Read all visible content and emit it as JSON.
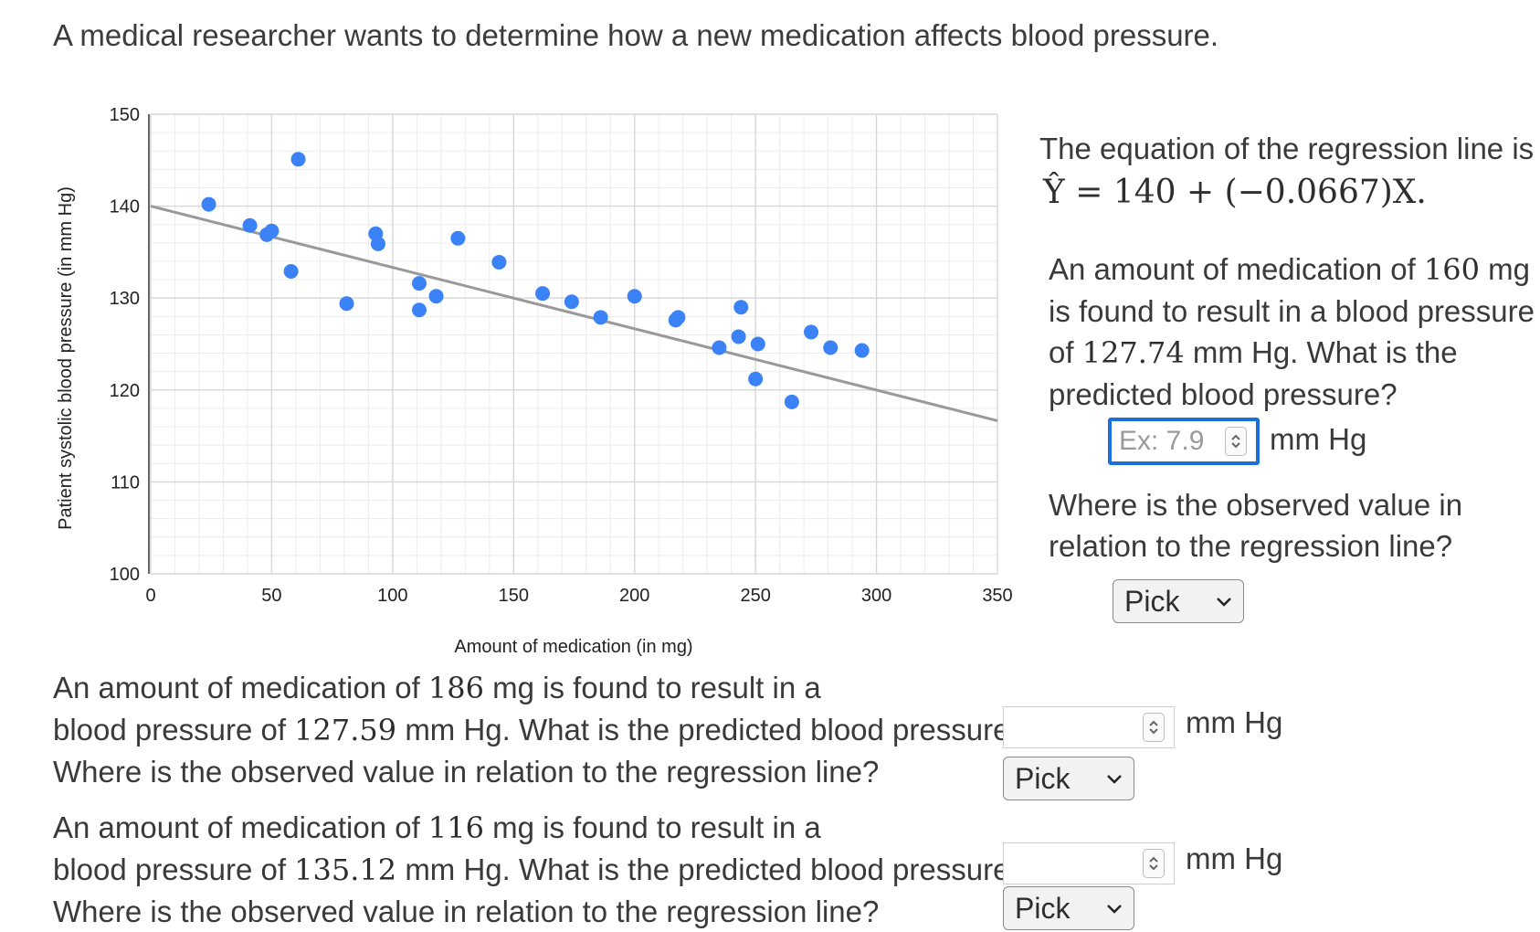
{
  "intro": "A medical researcher wants to determine how a new medication affects blood pressure.",
  "chart_data": {
    "type": "scatter",
    "xlabel": "Amount of medication (in mg)",
    "ylabel": "Patient systolic blood pressure (in mm Hg)",
    "xlim": [
      0,
      350
    ],
    "ylim": [
      100,
      150
    ],
    "x_ticks": [
      "0",
      "50",
      "100",
      "150",
      "200",
      "250",
      "300",
      "350"
    ],
    "y_ticks": [
      "100",
      "110",
      "120",
      "130",
      "140",
      "150"
    ],
    "x_tick_values": [
      0,
      50,
      100,
      150,
      200,
      250,
      300,
      350
    ],
    "y_tick_values": [
      100,
      110,
      120,
      130,
      140,
      150
    ],
    "grid": true,
    "points": [
      [
        24,
        140.2
      ],
      [
        41,
        137.9
      ],
      [
        48,
        136.9
      ],
      [
        50,
        137.3
      ],
      [
        58,
        132.9
      ],
      [
        61,
        145.1
      ],
      [
        81,
        129.4
      ],
      [
        93,
        137.0
      ],
      [
        94,
        135.9
      ],
      [
        111,
        131.6
      ],
      [
        111,
        128.7
      ],
      [
        118,
        130.2
      ],
      [
        127,
        136.5
      ],
      [
        144,
        133.9
      ],
      [
        162,
        130.5
      ],
      [
        174,
        129.6
      ],
      [
        186,
        127.9
      ],
      [
        200,
        130.2
      ],
      [
        217,
        127.6
      ],
      [
        218,
        127.9
      ],
      [
        235,
        124.6
      ],
      [
        243,
        125.8
      ],
      [
        244,
        129.0
      ],
      [
        250,
        121.2
      ],
      [
        251,
        125.0
      ],
      [
        265,
        118.7
      ],
      [
        273,
        126.3
      ],
      [
        281,
        124.6
      ],
      [
        294,
        124.3
      ]
    ],
    "regression_line": {
      "intercept": 140,
      "slope": -0.0667
    },
    "colors": {
      "points": "#3b82f6",
      "line": "#999999",
      "grid_major": "#d6d6d6",
      "grid_minor": "#ececec"
    }
  },
  "equation": {
    "intro": "The equation of the regression line is",
    "formula": "Ŷ = 140 + (−0.0667)X."
  },
  "q1": {
    "line1_pre": "An amount of medication of",
    "amount": "160",
    "line1_post": "mg",
    "line2": "is found to result in a blood pressure",
    "line3_pre": "of",
    "observed": "127.74",
    "line3_post": "mm Hg. What is the",
    "line4": "predicted blood pressure?",
    "placeholder": "Ex: 7.9",
    "unit": "mm Hg",
    "where_line1": "Where is the observed value in",
    "where_line2": "relation to the regression line?",
    "select_value": "Pick"
  },
  "q2": {
    "line1_pre": "An amount of medication of",
    "amount": "186",
    "line1_post": "mg is found to result in a",
    "line2_pre": "blood pressure of",
    "observed": "127.59",
    "line2_post": "mm Hg. What is the predicted blood pressure?",
    "where": "Where is the observed value in relation to the regression line?",
    "unit": "mm Hg",
    "select_value": "Pick"
  },
  "q3": {
    "line1_pre": "An amount of medication of",
    "amount": "116",
    "line1_post": "mg is found to result in a",
    "line2_pre": "blood pressure of",
    "observed": "135.12",
    "line2_post": "mm Hg. What is the predicted blood pressure?",
    "where": "Where is the observed value in relation to the regression line?",
    "unit": "mm Hg",
    "select_value": "Pick"
  }
}
